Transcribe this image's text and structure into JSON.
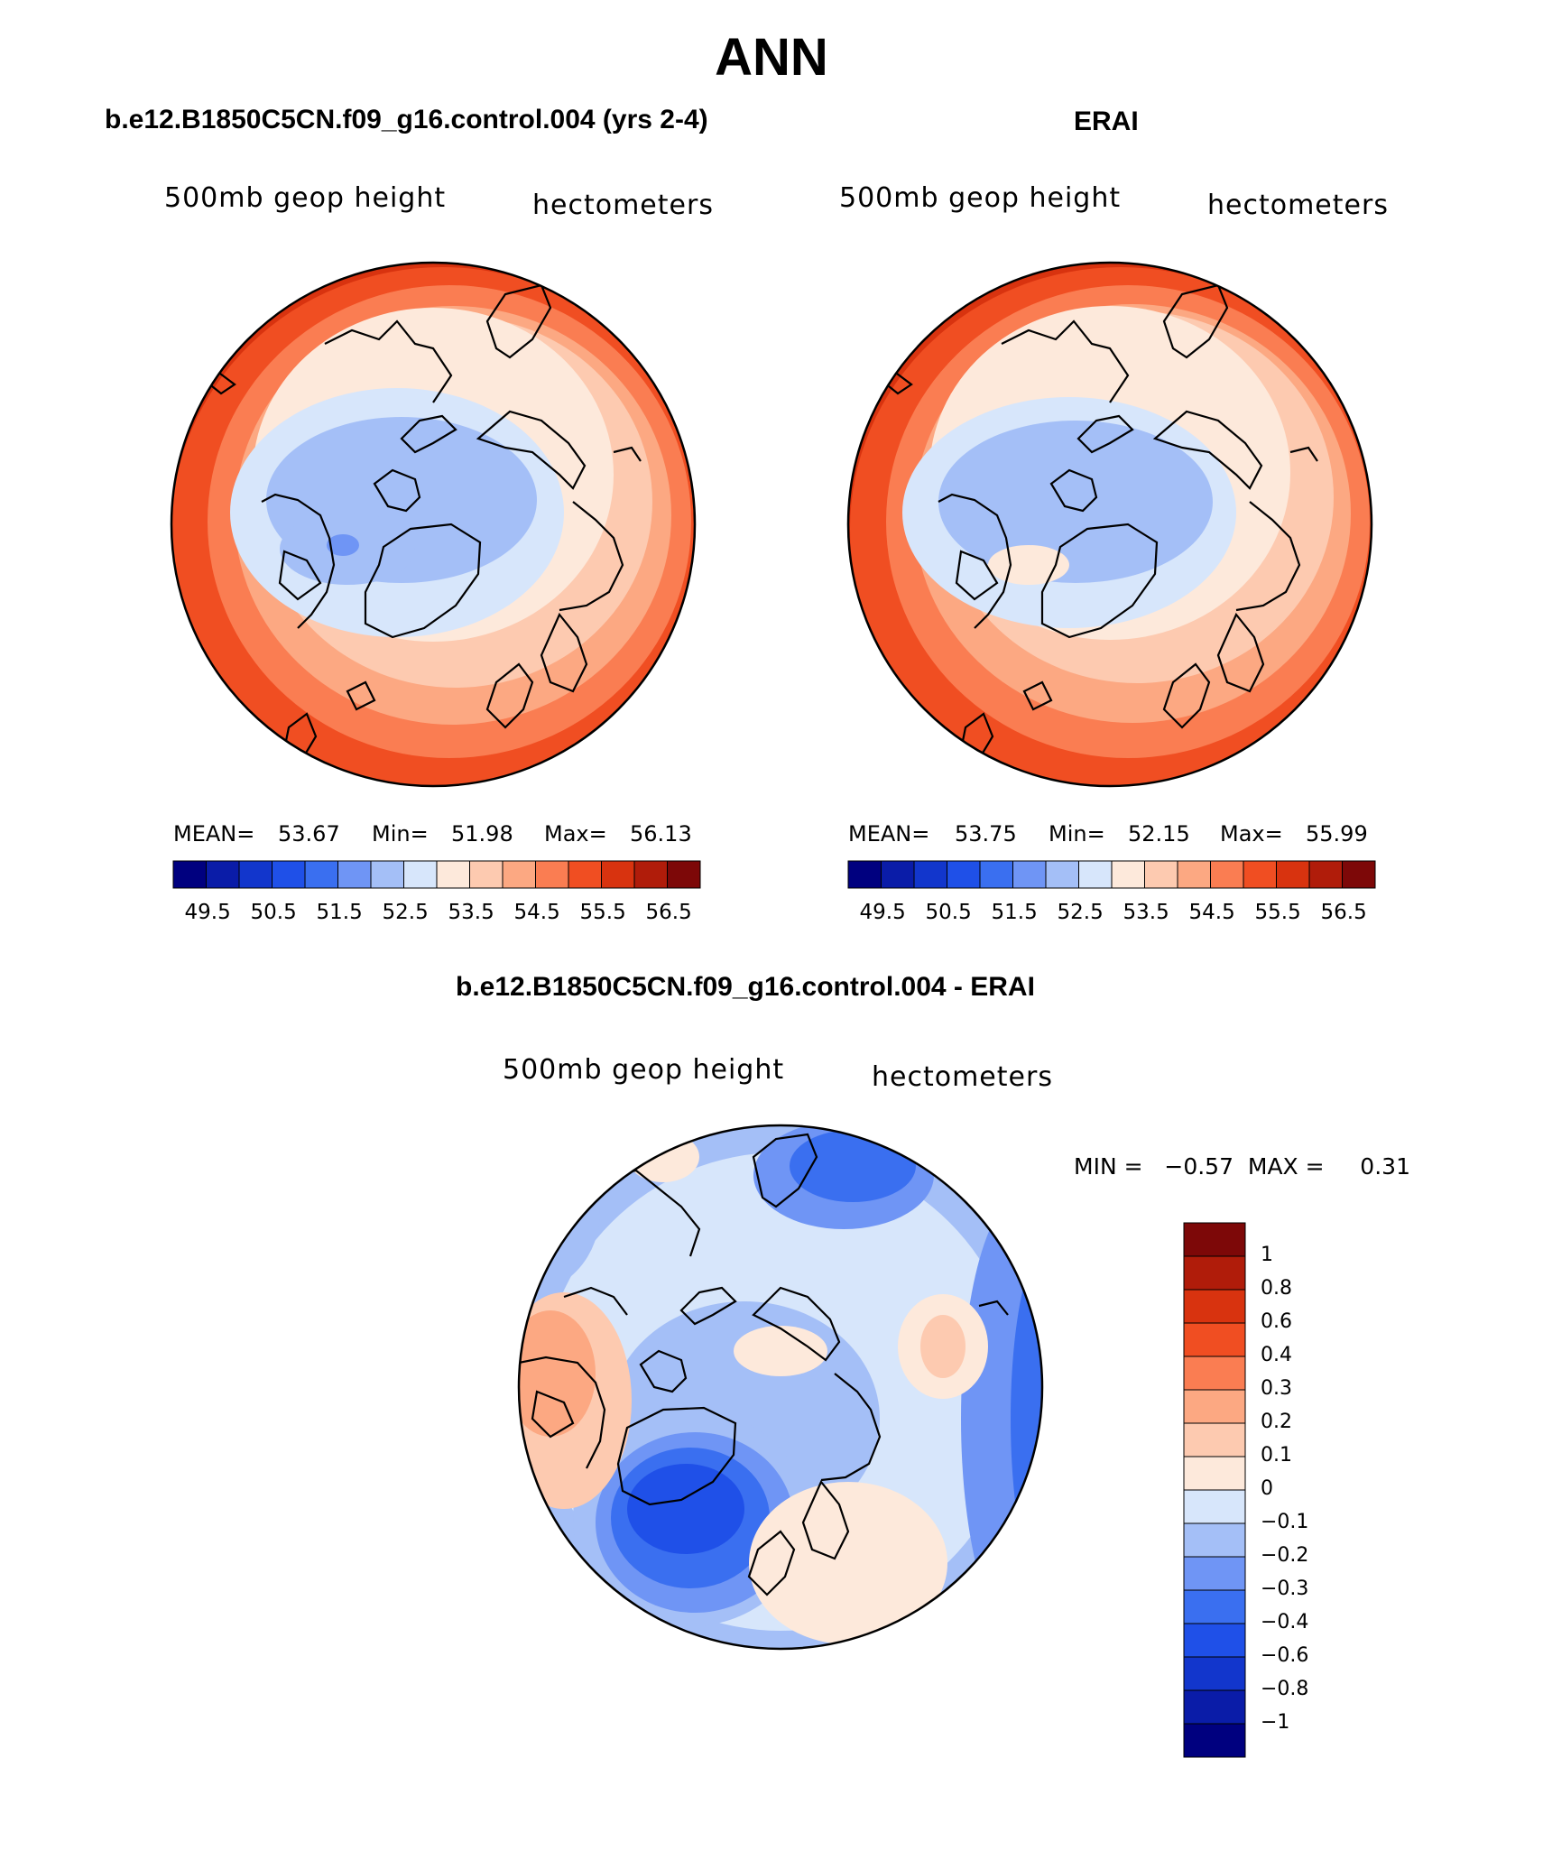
{
  "title": "ANN",
  "panels": {
    "left": {
      "title": "b.e12.B1850C5CN.f09_g16.control.004 (yrs 2-4)",
      "variable": "500mb geop height",
      "units": "hectometers",
      "mean_label": "MEAN=",
      "mean": "53.67",
      "min_label": "Min=",
      "min": "51.98",
      "max_label": "Max=",
      "max": "56.13"
    },
    "right": {
      "title": "ERAI",
      "variable": "500mb geop height",
      "units": "hectometers",
      "mean_label": "MEAN=",
      "mean": "53.75",
      "min_label": "Min=",
      "min": "52.15",
      "max_label": "Max=",
      "max": "55.99"
    },
    "diff": {
      "title": "b.e12.B1850C5CN.f09_g16.control.004 - ERAI",
      "variable": "500mb geop height",
      "units": "hectometers",
      "minmax": "MIN =   −0.57  MAX =     0.31"
    }
  },
  "colorbar_main": {
    "colors": [
      "#00007f",
      "#0a1ca8",
      "#1236cc",
      "#1f50e8",
      "#3a6ff0",
      "#6f95f5",
      "#a4bff7",
      "#d7e6fb",
      "#fde9db",
      "#fdcab0",
      "#fca882",
      "#fa7d52",
      "#f04e22",
      "#d8330f",
      "#b01c0a",
      "#7d0808"
    ],
    "labels": [
      "49.5",
      "50.5",
      "51.5",
      "52.5",
      "53.5",
      "54.5",
      "55.5",
      "56.5"
    ]
  },
  "colorbar_diff": {
    "colors": [
      "#7d0808",
      "#b01c0a",
      "#d8330f",
      "#f04e22",
      "#fa7d52",
      "#fca882",
      "#fdcab0",
      "#fde9db",
      "#d7e6fb",
      "#a4bff7",
      "#6f95f5",
      "#3a6ff0",
      "#1f50e8",
      "#1236cc",
      "#0a1ca8",
      "#00007f"
    ],
    "labels": [
      "1",
      "0.8",
      "0.6",
      "0.4",
      "0.3",
      "0.2",
      "0.1",
      "0",
      "−0.1",
      "−0.2",
      "−0.3",
      "−0.4",
      "−0.6",
      "−0.8",
      "−1"
    ]
  }
}
